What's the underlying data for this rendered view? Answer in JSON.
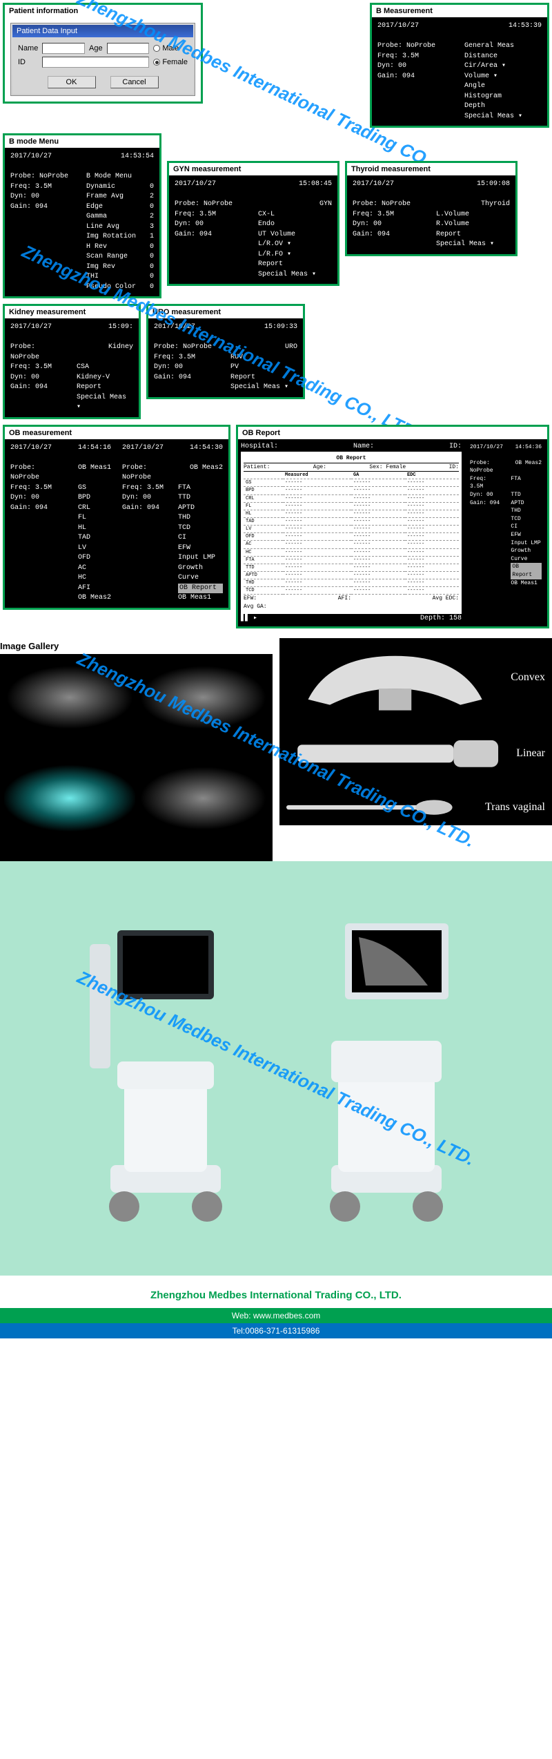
{
  "watermark": "Zhengzhou Medbes International Trading CO., LTD.",
  "colors": {
    "border": "#00a050",
    "accent_blue": "#0070c0",
    "text_blue": "#0090ff"
  },
  "patient_info": {
    "panel_title": "Patient information",
    "dialog_title": "Patient Data Input",
    "name_label": "Name",
    "name_value": "",
    "age_label": "Age",
    "age_value": "",
    "id_label": "ID",
    "id_value": "",
    "male_label": "Male",
    "female_label": "Female",
    "selected_sex": "Female",
    "ok": "OK",
    "cancel": "Cancel"
  },
  "b_meas": {
    "panel_title": "B Measurement",
    "date": "2017/10/27",
    "time": "14:53:39",
    "left": [
      "Probe: NoProbe",
      "Freq: 3.5M",
      "Dyn: 00",
      "Gain: 094"
    ],
    "right": [
      "General Meas",
      "Distance",
      "Cir/Area",
      "Volume",
      "Angle",
      "Histogram",
      "Depth",
      "Special Meas"
    ],
    "arrows_on": [
      2,
      3,
      7
    ]
  },
  "bmode_menu": {
    "panel_title": "B mode Menu",
    "date": "2017/10/27",
    "time": "14:53:54",
    "left": [
      "Probe: NoProbe",
      "Freq: 3.5M",
      "Dyn: 00",
      "Gain: 094"
    ],
    "menu_title": "B Mode Menu",
    "items": [
      [
        "Dynamic",
        "0"
      ],
      [
        "Frame Avg",
        "2"
      ],
      [
        "Edge",
        "0"
      ],
      [
        "Gamma",
        "2"
      ],
      [
        "Line Avg",
        "3"
      ],
      [
        "Img Rotation",
        "1"
      ],
      [
        "H Rev",
        "0"
      ],
      [
        "Scan Range",
        "0"
      ],
      [
        "Img Rev",
        "0"
      ],
      [
        "THI",
        "0"
      ],
      [
        "Pseudo Color",
        "0"
      ]
    ]
  },
  "gyn": {
    "panel_title": "GYN measurement",
    "date": "2017/10/27",
    "time": "15:08:45",
    "left": [
      "Probe: NoProbe",
      "Freq: 3.5M",
      "Dyn: 00",
      "Gain: 094"
    ],
    "right_title": "GYN",
    "right": [
      "CX-L",
      "Endo",
      "UT Volume",
      "L/R.OV",
      "L/R.FO",
      "Report",
      "Special Meas"
    ],
    "arrows_on": [
      3,
      4,
      6
    ]
  },
  "thyroid": {
    "panel_title": "Thyroid measurement",
    "date": "2017/10/27",
    "time": "15:09:08",
    "left": [
      "Probe: NoProbe",
      "Freq: 3.5M",
      "Dyn: 00",
      "Gain: 094"
    ],
    "right_title": "Thyroid",
    "right": [
      "L.Volume",
      "R.Volume",
      "Report",
      "Special Meas"
    ],
    "arrows_on": [
      3
    ]
  },
  "kidney": {
    "panel_title": "Kidney measurement",
    "date": "2017/10/27",
    "time": "15:09:",
    "left": [
      "Probe: NoProbe",
      "Freq: 3.5M",
      "Dyn: 00",
      "Gain: 094"
    ],
    "right_title": "Kidney",
    "right": [
      "CSA",
      "Kidney-V",
      "Report",
      "Special Meas"
    ],
    "arrows_on": [
      3
    ]
  },
  "uro": {
    "panel_title": "URO measurement",
    "date": "2017/10/27",
    "time": "15:09:33",
    "left": [
      "Probe: NoProbe",
      "Freq: 3.5M",
      "Dyn: 00",
      "Gain: 094"
    ],
    "right_title": "URO",
    "right": [
      "RUV",
      "PV",
      "Report",
      "Special Meas"
    ],
    "arrows_on": [
      3
    ]
  },
  "ob": {
    "panel_title": "OB measurement",
    "p1": {
      "date": "2017/10/27",
      "time": "14:54:16",
      "left": [
        "Probe: NoProbe",
        "Freq: 3.5M",
        "Dyn: 00",
        "Gain: 094"
      ],
      "right_title": "OB Meas1",
      "right": [
        "GS",
        "BPD",
        "CRL",
        "FL",
        "HL",
        "TAD",
        "LV",
        "OFD",
        "AC",
        "HC",
        "AFI",
        "OB Meas2"
      ]
    },
    "p2": {
      "date": "2017/10/27",
      "time": "14:54:30",
      "left": [
        "Probe: NoProbe",
        "Freq: 3.5M",
        "Dyn: 00",
        "Gain: 094"
      ],
      "right_title": "OB Meas2",
      "right": [
        "FTA",
        "TTD",
        "APTD",
        "THD",
        "TCD",
        "CI",
        "EFW",
        "Input LMP",
        "Growth Curve",
        "OB Report",
        "OB Meas1"
      ],
      "hi": 9
    }
  },
  "ob_report": {
    "panel_title": "OB Report",
    "hospital_label": "Hospital:",
    "name_label": "Name:",
    "id_label": "ID:",
    "title": "OB Report",
    "patient": "Patient:",
    "age": "Age:",
    "sex": "Sex: Female",
    "pid": "ID:",
    "cols": [
      "",
      "Measured",
      "GA",
      "EDC"
    ],
    "rows": [
      "GS",
      "BPD",
      "CRL",
      "FL",
      "HL",
      "TAD",
      "LV",
      "OFD",
      "AC",
      "HC",
      "FTA",
      "TTD",
      "APTD",
      "THD",
      "TCD"
    ],
    "bottom": [
      "AFI:",
      "AFI:",
      "Avg EDC:"
    ],
    "avg_ga": "Avg GA:",
    "depth": "Depth: 158",
    "side": {
      "date": "2017/10/27",
      "time": "14:54:36",
      "left": [
        "Probe: NoProbe",
        "Freq: 3.5M",
        "Dyn: 00",
        "Gain: 094"
      ],
      "right_title": "OB Meas2",
      "right": [
        "FTA",
        "TTD",
        "APTD",
        "THD",
        "TCD",
        "CI",
        "EFW",
        "Input LMP",
        "Growth Curve",
        "OB Report",
        "OB Meas1"
      ],
      "hi": 9
    }
  },
  "gallery_title": "Image Gallery",
  "probes": [
    "Convex",
    "Linear",
    "Trans vaginal"
  ],
  "footer": {
    "company": "Zhengzhou Medbes International Trading CO., LTD.",
    "web_label": "Web:",
    "web": "www.medbes.com",
    "tel_label": "Tel:",
    "tel": "0086-371-61315986"
  }
}
